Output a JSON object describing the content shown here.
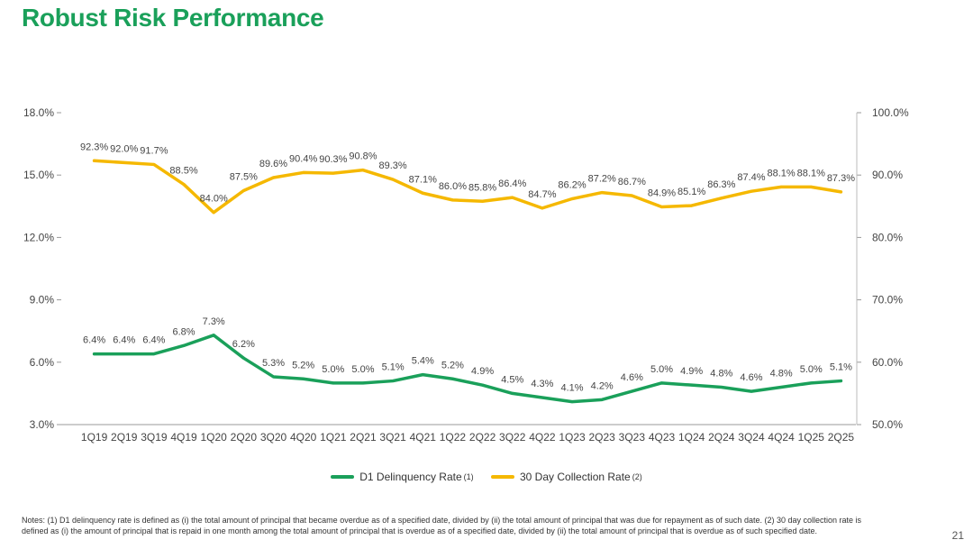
{
  "title": "Robust Risk Performance",
  "page_number": "21",
  "notes": "Notes: (1) D1 delinquency rate is defined as (i) the total amount of principal that became overdue as of a specified date, divided by (ii) the total amount of principal that was due for repayment as of such date. (2) 30 day collection rate is defined as (i) the amount of principal that is repaid in one month among the total amount of principal that is overdue as of a specified date, divided by (ii) the total amount of principal that is overdue as of such specified date.",
  "chart_data": {
    "type": "line",
    "categories": [
      "1Q19",
      "2Q19",
      "3Q19",
      "4Q19",
      "1Q20",
      "2Q20",
      "3Q20",
      "4Q20",
      "1Q21",
      "2Q21",
      "3Q21",
      "4Q21",
      "1Q22",
      "2Q22",
      "3Q22",
      "4Q22",
      "1Q23",
      "2Q23",
      "3Q23",
      "4Q23",
      "1Q24",
      "2Q24",
      "3Q24",
      "4Q24",
      "1Q25",
      "2Q25"
    ],
    "left_axis": {
      "min": 3.0,
      "max": 18.0,
      "ticks": [
        "3.0%",
        "6.0%",
        "9.0%",
        "12.0%",
        "15.0%",
        "18.0%"
      ]
    },
    "right_axis": {
      "min": 50.0,
      "max": 100.0,
      "ticks": [
        "50.0%",
        "60.0%",
        "70.0%",
        "80.0%",
        "90.0%",
        "100.0%"
      ]
    },
    "series": [
      {
        "name": "D1 Delinquency Rate",
        "superscript": "(1)",
        "axis": "left",
        "color": "#1aa05a",
        "values": [
          6.4,
          6.4,
          6.4,
          6.8,
          7.3,
          6.2,
          5.3,
          5.2,
          5.0,
          5.0,
          5.1,
          5.4,
          5.2,
          4.9,
          4.5,
          4.3,
          4.1,
          4.2,
          4.6,
          5.0,
          4.9,
          4.8,
          4.6,
          4.8,
          5.0,
          5.1
        ],
        "labels": [
          "6.4%",
          "6.4%",
          "6.4%",
          "6.8%",
          "7.3%",
          "6.2%",
          "5.3%",
          "5.2%",
          "5.0%",
          "5.0%",
          "5.1%",
          "5.4%",
          "5.2%",
          "4.9%",
          "4.5%",
          "4.3%",
          "4.1%",
          "4.2%",
          "4.6%",
          "5.0%",
          "4.9%",
          "4.8%",
          "4.6%",
          "4.8%",
          "5.0%",
          "5.1%"
        ]
      },
      {
        "name": "30 Day Collection Rate",
        "superscript": "(2)",
        "axis": "right",
        "color": "#f5b800",
        "values": [
          92.3,
          92.0,
          91.7,
          88.5,
          84.0,
          87.5,
          89.6,
          90.4,
          90.3,
          90.8,
          89.3,
          87.1,
          86.0,
          85.8,
          86.4,
          84.7,
          86.2,
          87.2,
          86.7,
          84.9,
          85.1,
          86.3,
          87.4,
          88.1,
          88.1,
          87.3
        ],
        "labels": [
          "92.3%",
          "92.0%",
          "91.7%",
          "88.5%",
          "84.0%",
          "87.5%",
          "89.6%",
          "90.4%",
          "90.3%",
          "90.8%",
          "89.3%",
          "87.1%",
          "86.0%",
          "85.8%",
          "86.4%",
          "84.7%",
          "86.2%",
          "87.2%",
          "86.7%",
          "84.9%",
          "85.1%",
          "86.3%",
          "87.4%",
          "88.1%",
          "88.1%",
          "87.3%"
        ]
      }
    ],
    "grid": false,
    "legend": "bottom"
  }
}
